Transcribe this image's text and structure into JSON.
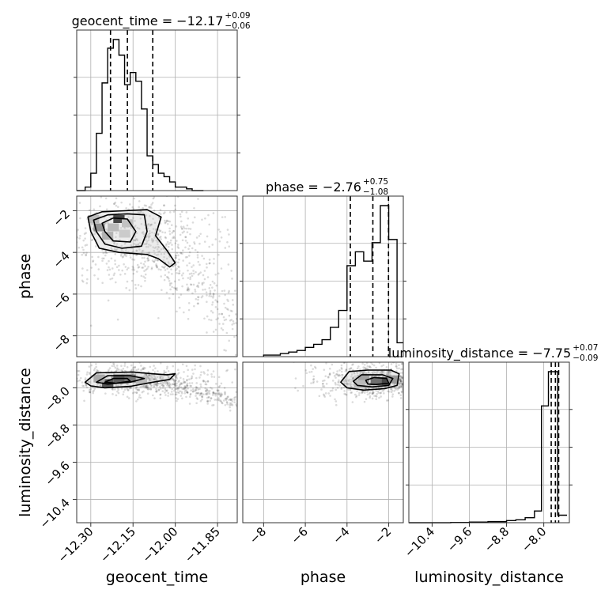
{
  "chart_data": {
    "type": "corner",
    "grid": true,
    "parameters": [
      "geocent_time",
      "phase",
      "luminosity_distance"
    ],
    "marginals": [
      {
        "param": "geocent_time",
        "title": {
          "prefix": "geocent_time = ",
          "value": "−12.17",
          "plus": "+0.09",
          "minus": "−0.06"
        },
        "quantiles": [
          -12.23,
          -12.17,
          -12.08
        ],
        "range": [
          -12.35,
          -11.78
        ],
        "bin_edges": [
          -12.35,
          -12.32,
          -12.3,
          -12.28,
          -12.26,
          -12.24,
          -12.22,
          -12.2,
          -12.18,
          -12.16,
          -12.14,
          -12.12,
          -12.1,
          -12.08,
          -12.06,
          -12.04,
          -12.02,
          -12.0,
          -11.98,
          -11.96,
          -11.94,
          -11.92,
          -11.9
        ],
        "counts": [
          0,
          2,
          10,
          33,
          62,
          82,
          87,
          78,
          61,
          68,
          63,
          47,
          20,
          15,
          10,
          8,
          5,
          2,
          2,
          1,
          0,
          0
        ]
      },
      {
        "param": "phase",
        "title": {
          "prefix": "phase = ",
          "value": "−2.76",
          "plus": "+0.75",
          "minus": "−1.08"
        },
        "quantiles": [
          -3.84,
          -2.76,
          -2.01
        ],
        "range": [
          -9.0,
          -1.3
        ],
        "bin_edges": [
          -8.0,
          -7.6,
          -7.2,
          -6.8,
          -6.4,
          -6.0,
          -5.6,
          -5.2,
          -4.8,
          -4.4,
          -4.0,
          -3.6,
          -3.2,
          -2.8,
          -2.4,
          -2.0,
          -1.6,
          -1.3
        ],
        "counts": [
          1,
          1,
          2,
          3,
          4,
          6,
          8,
          11,
          19,
          30,
          59,
          68,
          62,
          74,
          98,
          76,
          9
        ]
      },
      {
        "param": "luminosity_distance",
        "title": {
          "prefix": "luminosity_distance = ",
          "value": "−7.75",
          "plus": "+0.07",
          "minus": "−0.09"
        },
        "quantiles": [
          -7.84,
          -7.75,
          -7.68
        ],
        "range": [
          -10.9,
          -7.45
        ],
        "bin_edges": [
          -10.9,
          -10.0,
          -9.6,
          -9.2,
          -8.8,
          -8.6,
          -8.4,
          -8.2,
          -8.05,
          -7.9,
          -7.7,
          -7.5
        ],
        "counts": [
          0,
          0.3,
          0.7,
          1.3,
          2.5,
          3.5,
          6,
          14,
          140,
          181,
          9
        ]
      }
    ],
    "axes": {
      "geocent_time": {
        "ticks": [
          -12.3,
          -12.15,
          -12.0,
          -11.85
        ],
        "tick_labels": [
          "−12.30",
          "−12.15",
          "−12.00",
          "−11.85"
        ]
      },
      "phase": {
        "ticks": [
          -8,
          -6,
          -4,
          -2
        ],
        "tick_labels": [
          "−8",
          "−6",
          "−4",
          "−2"
        ]
      },
      "luminosity_distance": {
        "ticks": [
          -10.4,
          -9.6,
          -8.8,
          -8.0
        ],
        "tick_labels": [
          "−10.4",
          "−9.6",
          "−8.8",
          "−8.0"
        ]
      }
    },
    "pairs": [
      {
        "x": "geocent_time",
        "y": "phase",
        "contours": [
          [
            [
              -12.31,
              -2.3
            ],
            [
              -12.26,
              -2.05
            ],
            [
              -12.18,
              -2.0
            ],
            [
              -12.1,
              -1.95
            ],
            [
              -12.05,
              -2.3
            ],
            [
              -12.07,
              -3.2
            ],
            [
              -12.03,
              -3.9
            ],
            [
              -12.0,
              -4.5
            ],
            [
              -12.02,
              -4.7
            ],
            [
              -12.06,
              -4.3
            ],
            [
              -12.1,
              -4.1
            ],
            [
              -12.2,
              -4.0
            ],
            [
              -12.27,
              -3.8
            ],
            [
              -12.3,
              -3.0
            ]
          ],
          [
            [
              -12.29,
              -2.45
            ],
            [
              -12.24,
              -2.2
            ],
            [
              -12.17,
              -2.15
            ],
            [
              -12.11,
              -2.2
            ],
            [
              -12.1,
              -3.0
            ],
            [
              -12.12,
              -3.7
            ],
            [
              -12.19,
              -3.8
            ],
            [
              -12.25,
              -3.6
            ],
            [
              -12.28,
              -3.0
            ]
          ],
          [
            [
              -12.26,
              -2.6
            ],
            [
              -12.22,
              -2.35
            ],
            [
              -12.17,
              -2.4
            ],
            [
              -12.14,
              -3.0
            ],
            [
              -12.16,
              -3.5
            ],
            [
              -12.22,
              -3.45
            ],
            [
              -12.25,
              -3.0
            ]
          ]
        ],
        "cells": [
          [
            -12.2,
            -2.4,
            1.0
          ],
          [
            -12.27,
            -2.8,
            0.55
          ],
          [
            -12.22,
            -2.8,
            0.3
          ],
          [
            -12.17,
            -2.6,
            0.25
          ],
          [
            -12.24,
            -3.2,
            0.35
          ],
          [
            -12.18,
            -3.1,
            0.2
          ],
          [
            -12.29,
            -2.4,
            0.3
          ]
        ]
      },
      {
        "x": "geocent_time",
        "y": "luminosity_distance",
        "contours": [
          [
            [
              -12.32,
              -7.88
            ],
            [
              -12.28,
              -7.68
            ],
            [
              -12.15,
              -7.66
            ],
            [
              -12.08,
              -7.7
            ],
            [
              -12.03,
              -7.72
            ],
            [
              -12.0,
              -7.7
            ],
            [
              -12.02,
              -7.82
            ],
            [
              -12.08,
              -7.88
            ],
            [
              -12.16,
              -7.97
            ],
            [
              -12.25,
              -8.0
            ],
            [
              -12.3,
              -7.96
            ]
          ],
          [
            [
              -12.28,
              -7.88
            ],
            [
              -12.24,
              -7.74
            ],
            [
              -12.16,
              -7.74
            ],
            [
              -12.11,
              -7.8
            ],
            [
              -12.16,
              -7.88
            ],
            [
              -12.24,
              -7.92
            ]
          ],
          [
            [
              -12.25,
              -7.88
            ],
            [
              -12.22,
              -7.8
            ],
            [
              -12.17,
              -7.8
            ],
            [
              -12.16,
              -7.86
            ],
            [
              -12.21,
              -7.9
            ]
          ]
        ],
        "cells": [
          [
            -12.24,
            -7.9,
            0.9
          ],
          [
            -12.2,
            -7.8,
            0.85
          ],
          [
            -12.16,
            -7.8,
            0.7
          ],
          [
            -12.27,
            -7.8,
            0.4
          ],
          [
            -12.12,
            -7.84,
            0.3
          ]
        ]
      },
      {
        "x": "phase",
        "y": "luminosity_distance",
        "contours": [
          [
            [
              -4.3,
              -7.88
            ],
            [
              -3.9,
              -7.65
            ],
            [
              -3.0,
              -7.62
            ],
            [
              -1.9,
              -7.62
            ],
            [
              -1.5,
              -7.7
            ],
            [
              -1.6,
              -7.95
            ],
            [
              -2.2,
              -8.02
            ],
            [
              -3.2,
              -8.05
            ],
            [
              -4.0,
              -8.0
            ]
          ],
          [
            [
              -3.7,
              -7.86
            ],
            [
              -3.3,
              -7.72
            ],
            [
              -2.3,
              -7.72
            ],
            [
              -1.8,
              -7.8
            ],
            [
              -2.0,
              -7.95
            ],
            [
              -2.8,
              -7.98
            ],
            [
              -3.5,
              -7.95
            ]
          ],
          [
            [
              -3.1,
              -7.84
            ],
            [
              -2.7,
              -7.78
            ],
            [
              -2.1,
              -7.8
            ],
            [
              -2.0,
              -7.9
            ],
            [
              -2.6,
              -7.93
            ],
            [
              -3.0,
              -7.92
            ]
          ]
        ],
        "cells": [
          [
            -2.2,
            -7.86,
            1.0
          ],
          [
            -2.6,
            -7.86,
            0.75
          ],
          [
            -3.2,
            -7.82,
            0.45
          ],
          [
            -1.8,
            -7.82,
            0.5
          ],
          [
            -3.4,
            -7.92,
            0.3
          ]
        ]
      }
    ]
  }
}
